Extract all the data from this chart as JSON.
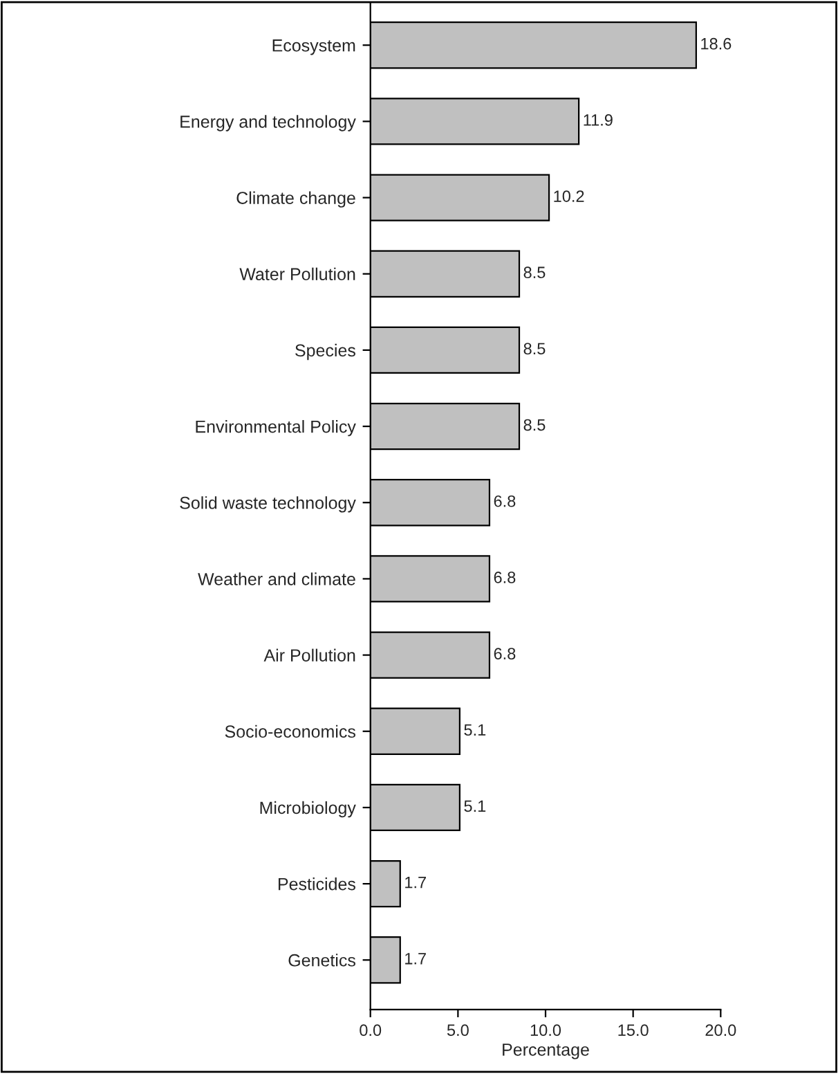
{
  "chart_data": {
    "type": "bar",
    "orientation": "horizontal",
    "xlabel": "Percentage",
    "categories": [
      "Ecosystem",
      "Energy and technology",
      "Climate change",
      "Water Pollution",
      "Species",
      "Environmental Policy",
      "Solid waste technology",
      "Weather and climate",
      "Air Pollution",
      "Socio-economics",
      "Microbiology",
      "Pesticides",
      "Genetics"
    ],
    "values": [
      18.6,
      11.9,
      10.2,
      8.5,
      8.5,
      8.5,
      6.8,
      6.8,
      6.8,
      5.1,
      5.1,
      1.7,
      1.7
    ],
    "color": "#c0c0c0",
    "data_labels": true,
    "grid": false,
    "legend": false,
    "xlim": [
      0,
      20
    ],
    "xticks": [
      {
        "value": 0,
        "label": "0.0"
      },
      {
        "value": 5,
        "label": "5.0"
      },
      {
        "value": 10,
        "label": "10.0"
      },
      {
        "value": 15,
        "label": "15.0"
      },
      {
        "value": 20,
        "label": "20.0"
      }
    ]
  }
}
